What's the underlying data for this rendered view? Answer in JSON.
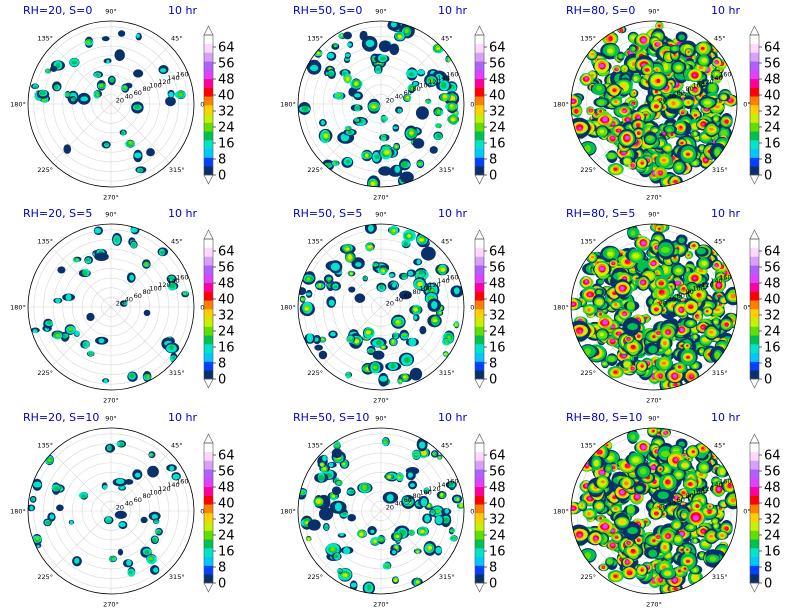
{
  "figure": {
    "time_label": "10 hr",
    "colorscale": [
      "#08306b",
      "#0040ff",
      "#00c8ff",
      "#00e5c8",
      "#00c050",
      "#60e000",
      "#c8f000",
      "#ffd000",
      "#ff8000",
      "#ff0000",
      "#ff00a0",
      "#e040ff",
      "#b060ff",
      "#d8a0ff",
      "#ffd8ff",
      "#ffffff"
    ]
  },
  "chart_data": [
    {
      "type": "heatmap",
      "projection": "polar",
      "title": "RH=20, S=0",
      "time": "10 hr",
      "rh": 20,
      "s": 0,
      "coverage": "sparse",
      "theta_ticks": [
        "0°",
        "45°",
        "90°",
        "135°",
        "180°",
        "225°",
        "270°",
        "315°"
      ],
      "r_ticks": [
        "20",
        "40",
        "60",
        "80",
        "100",
        "120",
        "140",
        "160"
      ],
      "colorbar_ticks": [
        "0",
        "8",
        "16",
        "24",
        "32",
        "40",
        "48",
        "56",
        "64"
      ],
      "colorbar_range": [
        0,
        70
      ],
      "colorbar_extend": "both"
    },
    {
      "type": "heatmap",
      "projection": "polar",
      "title": "RH=50, S=0",
      "time": "10 hr",
      "rh": 50,
      "s": 0,
      "coverage": "scattered",
      "theta_ticks": [
        "0°",
        "45°",
        "90°",
        "135°",
        "180°",
        "225°",
        "270°",
        "315°"
      ],
      "r_ticks": [
        "20",
        "40",
        "60",
        "80",
        "100",
        "120",
        "140",
        "160"
      ],
      "colorbar_ticks": [
        "0",
        "8",
        "16",
        "24",
        "32",
        "40",
        "48",
        "56",
        "64"
      ],
      "colorbar_range": [
        0,
        70
      ],
      "colorbar_extend": "both"
    },
    {
      "type": "heatmap",
      "projection": "polar",
      "title": "RH=80, S=0",
      "time": "10 hr",
      "rh": 80,
      "s": 0,
      "coverage": "dense",
      "theta_ticks": [
        "0°",
        "45°",
        "90°",
        "135°",
        "180°",
        "225°",
        "270°",
        "315°"
      ],
      "r_ticks": [
        "20",
        "40",
        "60",
        "80",
        "100",
        "120",
        "140",
        "160"
      ],
      "colorbar_ticks": [
        "0",
        "8",
        "16",
        "24",
        "32",
        "40",
        "48",
        "56",
        "64"
      ],
      "colorbar_range": [
        0,
        70
      ],
      "colorbar_extend": "both"
    },
    {
      "type": "heatmap",
      "projection": "polar",
      "title": "RH=20, S=5",
      "time": "10 hr",
      "rh": 20,
      "s": 5,
      "coverage": "sparse",
      "theta_ticks": [
        "0°",
        "45°",
        "90°",
        "135°",
        "180°",
        "225°",
        "270°",
        "315°"
      ],
      "r_ticks": [
        "20",
        "40",
        "60",
        "80",
        "100",
        "120",
        "140",
        "160"
      ],
      "colorbar_ticks": [
        "0",
        "8",
        "16",
        "24",
        "32",
        "40",
        "48",
        "56",
        "64"
      ],
      "colorbar_range": [
        0,
        70
      ],
      "colorbar_extend": "both"
    },
    {
      "type": "heatmap",
      "projection": "polar",
      "title": "RH=50, S=5",
      "time": "10 hr",
      "rh": 50,
      "s": 5,
      "coverage": "scattered",
      "theta_ticks": [
        "0°",
        "45°",
        "90°",
        "135°",
        "180°",
        "225°",
        "270°",
        "315°"
      ],
      "r_ticks": [
        "20",
        "40",
        "60",
        "80",
        "100",
        "120",
        "140",
        "160"
      ],
      "colorbar_ticks": [
        "0",
        "8",
        "16",
        "24",
        "32",
        "40",
        "48",
        "56",
        "64"
      ],
      "colorbar_range": [
        0,
        70
      ],
      "colorbar_extend": "both"
    },
    {
      "type": "heatmap",
      "projection": "polar",
      "title": "RH=80, S=5",
      "time": "10 hr",
      "rh": 80,
      "s": 5,
      "coverage": "dense",
      "theta_ticks": [
        "0°",
        "45°",
        "90°",
        "135°",
        "180°",
        "225°",
        "270°",
        "315°"
      ],
      "r_ticks": [
        "20",
        "40",
        "60",
        "80",
        "100",
        "120",
        "140",
        "160"
      ],
      "colorbar_ticks": [
        "0",
        "8",
        "16",
        "24",
        "32",
        "40",
        "48",
        "56",
        "64"
      ],
      "colorbar_range": [
        0,
        70
      ],
      "colorbar_extend": "both"
    },
    {
      "type": "heatmap",
      "projection": "polar",
      "title": "RH=20, S=10",
      "time": "10 hr",
      "rh": 20,
      "s": 10,
      "coverage": "sparse",
      "theta_ticks": [
        "0°",
        "45°",
        "90°",
        "135°",
        "180°",
        "225°",
        "270°",
        "315°"
      ],
      "r_ticks": [
        "20",
        "40",
        "60",
        "80",
        "100",
        "120",
        "140",
        "160"
      ],
      "colorbar_ticks": [
        "0",
        "8",
        "16",
        "24",
        "32",
        "40",
        "48",
        "56",
        "64"
      ],
      "colorbar_range": [
        0,
        70
      ],
      "colorbar_extend": "both"
    },
    {
      "type": "heatmap",
      "projection": "polar",
      "title": "RH=50, S=10",
      "time": "10 hr",
      "rh": 50,
      "s": 10,
      "coverage": "scattered",
      "theta_ticks": [
        "0°",
        "45°",
        "90°",
        "135°",
        "180°",
        "225°",
        "270°",
        "315°"
      ],
      "r_ticks": [
        "20",
        "40",
        "60",
        "80",
        "100",
        "120",
        "140",
        "160"
      ],
      "colorbar_ticks": [
        "0",
        "8",
        "16",
        "24",
        "32",
        "40",
        "48",
        "56",
        "64"
      ],
      "colorbar_range": [
        0,
        70
      ],
      "colorbar_extend": "both"
    },
    {
      "type": "heatmap",
      "projection": "polar",
      "title": "RH=80, S=10",
      "time": "10 hr",
      "rh": 80,
      "s": 10,
      "coverage": "dense",
      "theta_ticks": [
        "0°",
        "45°",
        "90°",
        "135°",
        "180°",
        "225°",
        "270°",
        "315°"
      ],
      "r_ticks": [
        "20",
        "40",
        "60",
        "80",
        "100",
        "120",
        "140",
        "160"
      ],
      "colorbar_ticks": [
        "0",
        "8",
        "16",
        "24",
        "32",
        "40",
        "48",
        "56",
        "64"
      ],
      "colorbar_range": [
        0,
        70
      ],
      "colorbar_extend": "both"
    }
  ]
}
